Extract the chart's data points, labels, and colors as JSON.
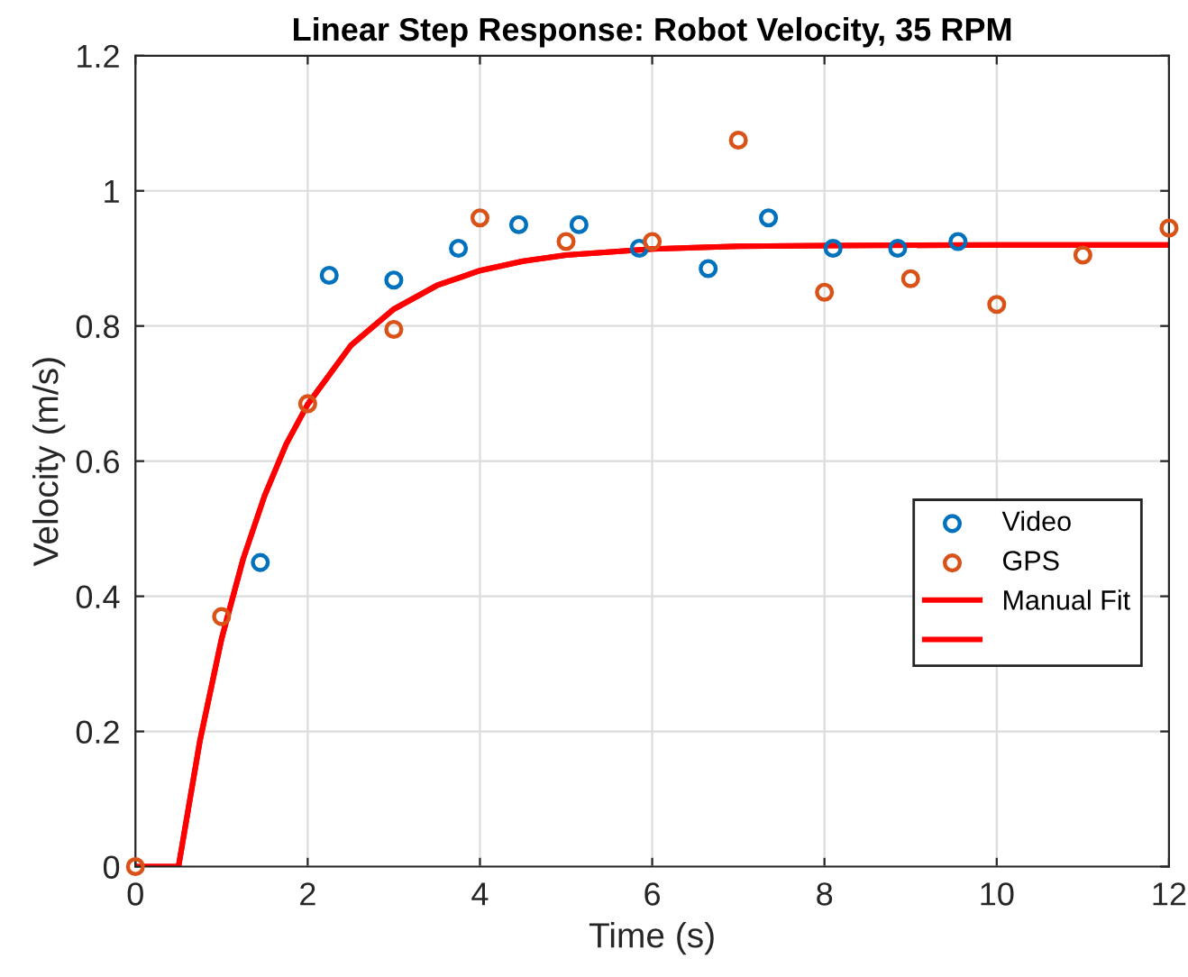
{
  "chart_data": {
    "type": "scatter",
    "title": "Linear Step Response: Robot Velocity, 35 RPM",
    "xlabel": "Time (s)",
    "ylabel": "Velocity (m/s)",
    "xlim": [
      0,
      12
    ],
    "xticks": [
      0,
      2,
      4,
      6,
      8,
      10,
      12
    ],
    "ylim": [
      0,
      1.2
    ],
    "yticks": [
      0,
      0.2,
      0.4,
      0.6,
      0.8,
      1,
      1.2
    ],
    "grid": true,
    "legend": "right",
    "series": [
      {
        "name": "Video",
        "marker": "circle",
        "color": "#0072bd",
        "x": [
          1.45,
          2.25,
          3,
          3.75,
          4.45,
          5.15,
          5.85,
          6.65,
          7.35,
          8.1,
          8.85,
          9.55
        ],
        "values": [
          0.45,
          0.875,
          0.868,
          0.915,
          0.95,
          0.95,
          0.915,
          0.885,
          0.96,
          0.915,
          0.915,
          0.925
        ]
      },
      {
        "name": "GPS",
        "marker": "circle",
        "color": "#d95319",
        "x": [
          0,
          1,
          2,
          3,
          4,
          5,
          6,
          7,
          8,
          9,
          10,
          11,
          12
        ],
        "values": [
          0,
          0.37,
          0.685,
          0.795,
          0.96,
          0.925,
          0.925,
          1.075,
          0.85,
          0.87,
          0.832,
          0.905,
          0.945
        ]
      },
      {
        "name": "Manual Fit",
        "type": "line",
        "marker": "none",
        "color": "#ff0000",
        "x": [
          0,
          0.5,
          0.75,
          1,
          1.25,
          1.5,
          1.75,
          2,
          2.5,
          3,
          3.5,
          4,
          4.5,
          5,
          6,
          7,
          8,
          10,
          12
        ],
        "values": [
          0,
          0,
          0.187,
          0.337,
          0.455,
          0.549,
          0.625,
          0.684,
          0.771,
          0.825,
          0.86,
          0.882,
          0.896,
          0.905,
          0.914,
          0.918,
          0.919,
          0.92,
          0.92
        ]
      },
      {
        "type": "line",
        "marker": "none",
        "color": "#ff0000",
        "x": [
          0,
          0.5,
          0.75,
          1,
          1.25,
          1.5,
          1.75,
          2,
          2.5,
          3,
          3.5,
          4,
          4.5,
          5,
          6,
          7,
          8,
          10,
          12
        ],
        "values": [
          0,
          0,
          0.187,
          0.337,
          0.455,
          0.549,
          0.625,
          0.684,
          0.771,
          0.825,
          0.86,
          0.882,
          0.896,
          0.905,
          0.914,
          0.918,
          0.919,
          0.92,
          0.92
        ]
      }
    ]
  }
}
